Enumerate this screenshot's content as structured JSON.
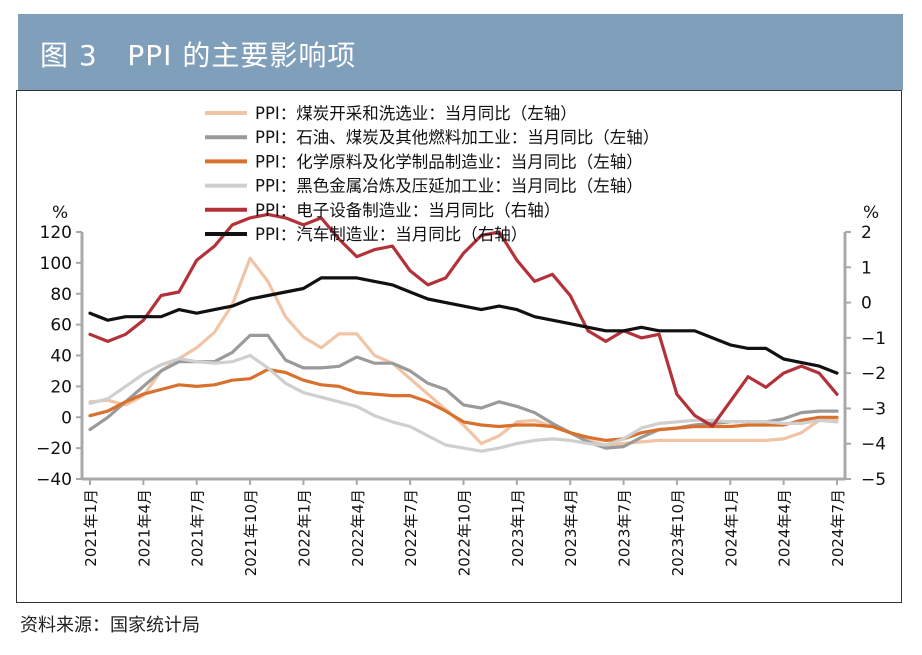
{
  "header": {
    "title": "图 3   PPI 的主要影响项"
  },
  "source": "资料来源：国家统计局",
  "chart_data": {
    "type": "line",
    "title": "PPI 的主要影响项",
    "ylabel_left": "%",
    "ylabel_right": "%",
    "ylim_left": [
      -40,
      120
    ],
    "ylim_right": [
      -5,
      2
    ],
    "yticks_left": [
      "120",
      "100",
      "80",
      "60",
      "40",
      "20",
      "0",
      "−20",
      "−40"
    ],
    "yticks_right": [
      "2",
      "1",
      "0",
      "−1",
      "−2",
      "−3",
      "−4",
      "−5"
    ],
    "x": [
      "2021年1月",
      "2021年2月",
      "2021年3月",
      "2021年4月",
      "2021年5月",
      "2021年6月",
      "2021年7月",
      "2021年8月",
      "2021年9月",
      "2021年10月",
      "2021年11月",
      "2021年12月",
      "2022年1月",
      "2022年2月",
      "2022年3月",
      "2022年4月",
      "2022年5月",
      "2022年6月",
      "2022年7月",
      "2022年8月",
      "2022年9月",
      "2022年10月",
      "2022年11月",
      "2022年12月",
      "2023年1月",
      "2023年2月",
      "2023年3月",
      "2023年4月",
      "2023年5月",
      "2023年6月",
      "2023年7月",
      "2023年8月",
      "2023年9月",
      "2023年10月",
      "2023年11月",
      "2023年12月",
      "2024年1月",
      "2024年2月",
      "2024年3月",
      "2024年4月",
      "2024年5月",
      "2024年6月",
      "2024年7月"
    ],
    "xtick_labels": [
      "2021年1月",
      "2021年4月",
      "2021年7月",
      "2021年10月",
      "2022年1月",
      "2022年4月",
      "2022年7月",
      "2022年10月",
      "2023年1月",
      "2023年4月",
      "2023年7月",
      "2023年10月",
      "2024年1月",
      "2024年4月",
      "2024年7月"
    ],
    "legend_position": "top-center",
    "grid": false,
    "series": [
      {
        "name": "PPI：煤炭开采和洗选业：当月同比（左轴）",
        "axis": "left",
        "color": "#f2c4a6",
        "values": [
          10,
          11,
          8,
          14,
          30,
          38,
          45,
          55,
          73,
          103,
          88,
          65,
          52,
          45,
          54,
          54,
          40,
          35,
          25,
          15,
          5,
          -5,
          -17,
          -12,
          -3,
          -2,
          -6,
          -10,
          -15,
          -18,
          -17,
          -16,
          -15,
          -15,
          -15,
          -15,
          -15,
          -15,
          -15,
          -14,
          -10,
          -2,
          -2
        ]
      },
      {
        "name": "PPI：石油、煤炭及其他燃料加工业：当月同比（左轴）",
        "axis": "left",
        "color": "#9a9a9a",
        "values": [
          -8,
          0,
          10,
          20,
          30,
          36,
          36,
          36,
          42,
          53,
          53,
          37,
          32,
          32,
          33,
          39,
          35,
          35,
          30,
          22,
          18,
          8,
          6,
          10,
          7,
          3,
          -4,
          -10,
          -16,
          -20,
          -19,
          -13,
          -8,
          -7,
          -5,
          -4,
          -3,
          -3,
          -3,
          -1,
          3,
          4,
          4
        ]
      },
      {
        "name": "PPI：化学原料及化学制品制造业：当月同比（左轴）",
        "axis": "left",
        "color": "#d9712e",
        "values": [
          1,
          4,
          10,
          15,
          18,
          21,
          20,
          21,
          24,
          25,
          31,
          29,
          24,
          21,
          20,
          16,
          15,
          14,
          14,
          10,
          4,
          -3,
          -5,
          -6,
          -5,
          -5,
          -6,
          -10,
          -13,
          -15,
          -14,
          -10,
          -8,
          -7,
          -6,
          -6,
          -6,
          -5,
          -5,
          -5,
          -2,
          0,
          0
        ]
      },
      {
        "name": "PPI：黑色金属冶炼及压延加工业：当月同比（左轴）",
        "axis": "left",
        "color": "#cfcfcf",
        "values": [
          9,
          12,
          20,
          28,
          34,
          38,
          36,
          35,
          36,
          40,
          32,
          22,
          16,
          13,
          10,
          7,
          1,
          -3,
          -6,
          -12,
          -18,
          -20,
          -22,
          -20,
          -17,
          -15,
          -14,
          -15,
          -17,
          -18,
          -14,
          -7,
          -4,
          -3,
          -2,
          -2,
          -3,
          -3,
          -3,
          -4,
          -4,
          -2,
          -3
        ]
      },
      {
        "name": "PPI：电子设备制造业：当月同比（右轴）",
        "axis": "right",
        "color": "#b3323a",
        "values": [
          -0.9,
          -1.1,
          -0.9,
          -0.5,
          0.2,
          0.3,
          1.2,
          1.6,
          2.2,
          2.4,
          2.5,
          2.4,
          2.2,
          2.4,
          1.8,
          1.3,
          1.5,
          1.6,
          0.9,
          0.5,
          0.7,
          1.4,
          1.9,
          2.0,
          1.2,
          0.6,
          0.8,
          0.2,
          -0.8,
          -1.1,
          -0.8,
          -1.0,
          -0.9,
          -2.6,
          -3.2,
          -3.5,
          -2.8,
          -2.1,
          -2.4,
          -2.0,
          -1.8,
          -2.0,
          -2.6
        ]
      },
      {
        "name": "PPI：汽车制造业：当月同比（右轴）",
        "axis": "right",
        "color": "#111111",
        "values": [
          -0.3,
          -0.5,
          -0.4,
          -0.4,
          -0.4,
          -0.2,
          -0.3,
          -0.2,
          -0.1,
          0.1,
          0.2,
          0.3,
          0.4,
          0.7,
          0.7,
          0.7,
          0.6,
          0.5,
          0.3,
          0.1,
          0.0,
          -0.1,
          -0.2,
          -0.1,
          -0.2,
          -0.4,
          -0.5,
          -0.6,
          -0.7,
          -0.8,
          -0.8,
          -0.7,
          -0.8,
          -0.8,
          -0.8,
          -1.0,
          -1.2,
          -1.3,
          -1.3,
          -1.6,
          -1.7,
          -1.8,
          -2.0
        ]
      }
    ]
  }
}
